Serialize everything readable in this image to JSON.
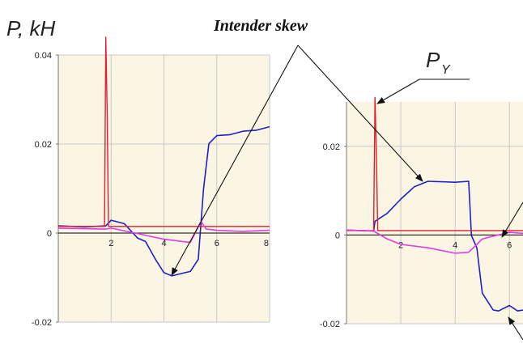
{
  "figure": {
    "y_label": "P, kH",
    "annotation": "Intender skew",
    "force_label": "P",
    "force_label_sub": "Y"
  },
  "colors": {
    "panel_bg": "#fbf6e4",
    "grid": "#c8c8c8",
    "axis": "#777777",
    "blue": "#1f1fc8",
    "red": "#e0202a",
    "magenta": "#e23ce0",
    "arrow": "#111111"
  },
  "chart_data": [
    {
      "type": "line",
      "title": "",
      "xlabel": "",
      "ylabel": "P, kH",
      "xlim": [
        0,
        8
      ],
      "ylim": [
        -0.02,
        0.04
      ],
      "x_ticks": [
        "2",
        "4",
        "6",
        "8"
      ],
      "y_ticks": [
        "0.04",
        "0.02",
        "0",
        "-0.02"
      ],
      "grid": true,
      "series": [
        {
          "color": "blue",
          "x": [
            0,
            1.0,
            1.8,
            2.0,
            2.5,
            3.0,
            3.3,
            3.7,
            4.0,
            4.3,
            4.8,
            5.0,
            5.3,
            5.5,
            5.7,
            6.0,
            6.5,
            7.0,
            7.5,
            8.0
          ],
          "y": [
            0.0015,
            0.0015,
            0.0015,
            0.003,
            0.002,
            -0.001,
            -0.002,
            -0.006,
            -0.009,
            -0.0095,
            -0.009,
            -0.0085,
            -0.006,
            0.01,
            0.02,
            0.022,
            0.022,
            0.023,
            0.023,
            0.024
          ]
        },
        {
          "color": "red",
          "x": [
            0,
            1.75,
            1.8,
            1.85,
            1.9,
            8.0
          ],
          "y": [
            0.0015,
            0.0015,
            0.044,
            0.027,
            0.0015,
            0.0015
          ]
        },
        {
          "color": "magenta",
          "x": [
            0,
            1.8,
            2.0,
            3.0,
            4.0,
            5.0,
            5.4,
            5.6,
            6.0,
            7.0,
            8.0
          ],
          "y": [
            0.001,
            0.001,
            0.001,
            0.0,
            -0.0015,
            -0.002,
            0.0025,
            0.001,
            0.0005,
            0.0005,
            0.0005
          ]
        }
      ]
    },
    {
      "type": "line",
      "title": "",
      "xlabel": "",
      "ylabel": "",
      "xlim": [
        0,
        6.5
      ],
      "ylim": [
        -0.02,
        0.03
      ],
      "x_ticks": [
        "2",
        "4",
        "6"
      ],
      "y_ticks": [
        "0.02",
        "0",
        "-0.02"
      ],
      "grid": true,
      "series": [
        {
          "color": "blue",
          "x": [
            0,
            1.0,
            1.05,
            1.5,
            2.0,
            2.5,
            3.0,
            4.0,
            4.5,
            4.6,
            4.8,
            5.0,
            5.4,
            5.6,
            6.0,
            6.3,
            6.5
          ],
          "y": [
            0.001,
            0.001,
            0.003,
            0.005,
            0.008,
            0.011,
            0.012,
            0.012,
            0.012,
            0.0,
            -0.003,
            -0.013,
            -0.017,
            -0.017,
            -0.016,
            -0.017,
            -0.017
          ]
        },
        {
          "color": "red",
          "x": [
            0,
            1.0,
            1.05,
            1.1,
            1.15,
            6.5
          ],
          "y": [
            0.001,
            0.001,
            0.031,
            0.018,
            0.001,
            0.001
          ]
        },
        {
          "color": "magenta",
          "x": [
            0,
            1.0,
            1.5,
            2.0,
            3.0,
            4.0,
            4.5,
            4.8,
            5.0,
            5.5,
            6.0,
            6.5
          ],
          "y": [
            0.001,
            0.001,
            -0.001,
            -0.002,
            -0.003,
            -0.004,
            -0.004,
            -0.002,
            -0.001,
            0.0,
            0.0005,
            0.0005
          ]
        }
      ]
    }
  ]
}
